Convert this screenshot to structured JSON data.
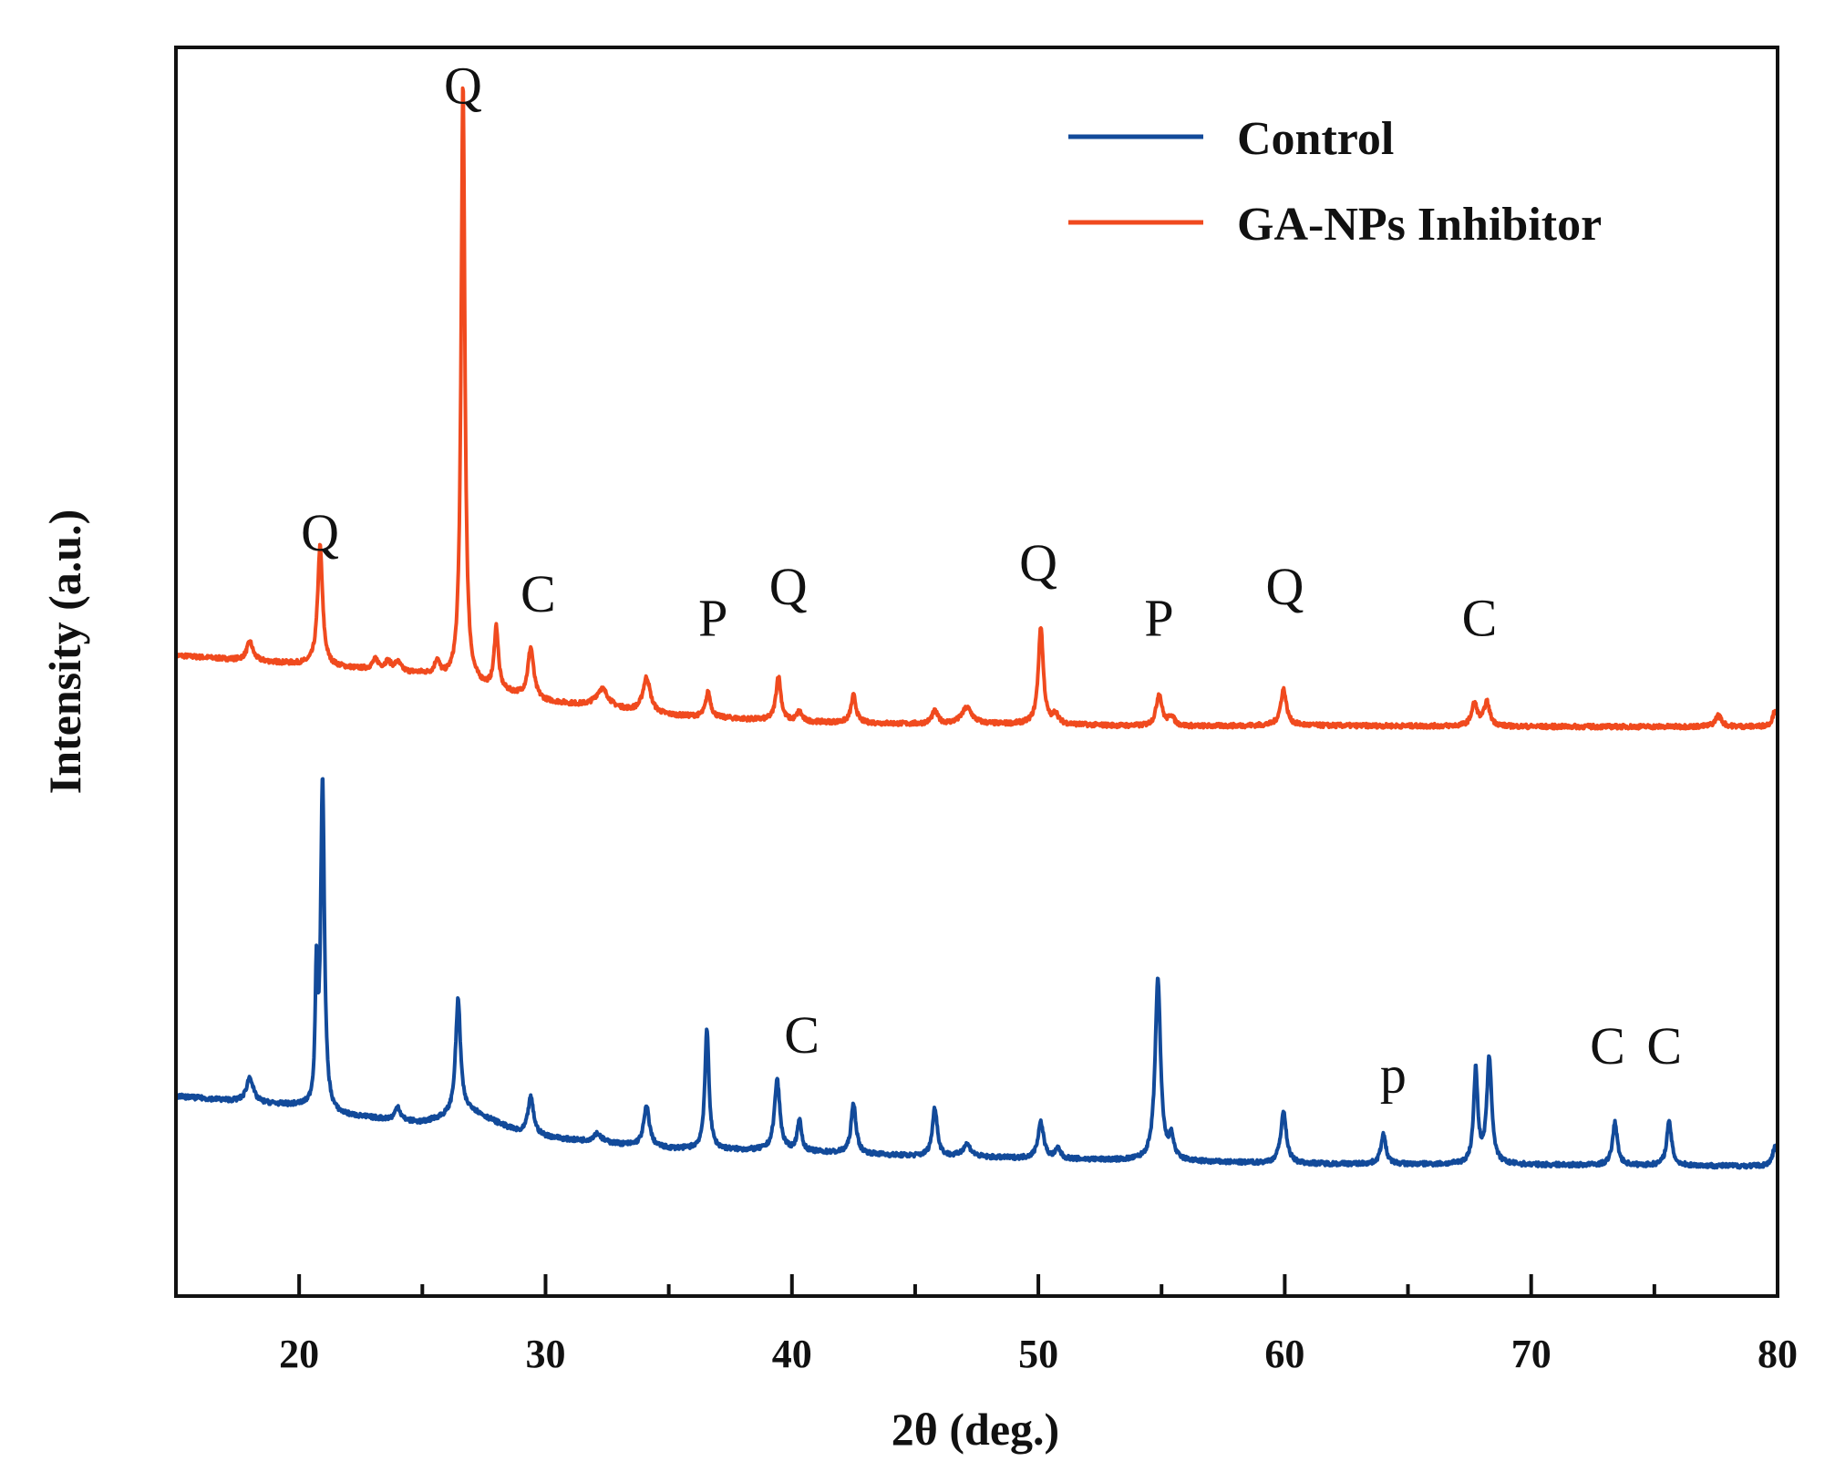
{
  "chart_data": {
    "type": "line",
    "title": "",
    "xlabel": "2θ (deg.)",
    "ylabel": "Intensity (a.u.)",
    "xlim": [
      15,
      80
    ],
    "ylim": [
      0,
      100
    ],
    "x_ticks": [
      20,
      30,
      40,
      50,
      60,
      70,
      80
    ],
    "legend": {
      "position": "top-right",
      "entries": [
        "Control",
        "GA-NPs Inhibitor"
      ]
    },
    "series": [
      {
        "name": "GA-NPs Inhibitor",
        "color": "#f04a1e",
        "baseline": [
          [
            15,
            51.3
          ],
          [
            20,
            50.6
          ],
          [
            25,
            49.8
          ],
          [
            30,
            47.6
          ],
          [
            35,
            46.5
          ],
          [
            40,
            46.0
          ],
          [
            45,
            45.8
          ],
          [
            50,
            45.8
          ],
          [
            55,
            45.6
          ],
          [
            60,
            45.7
          ],
          [
            70,
            45.6
          ],
          [
            80,
            45.6
          ]
        ],
        "peaks": [
          {
            "x": 18.0,
            "h": 1.5,
            "w": 0.15
          },
          {
            "x": 20.85,
            "h": 9.6,
            "w": 0.12
          },
          {
            "x": 23.1,
            "h": 0.8,
            "w": 0.15
          },
          {
            "x": 23.6,
            "h": 0.7,
            "w": 0.15
          },
          {
            "x": 24.0,
            "h": 0.7,
            "w": 0.15
          },
          {
            "x": 25.6,
            "h": 1.2,
            "w": 0.12
          },
          {
            "x": 26.65,
            "h": 48.0,
            "w": 0.09
          },
          {
            "x": 28.0,
            "h": 5.0,
            "w": 0.1
          },
          {
            "x": 29.4,
            "h": 4.0,
            "w": 0.14
          },
          {
            "x": 32.3,
            "h": 1.5,
            "w": 0.3
          },
          {
            "x": 34.1,
            "h": 2.8,
            "w": 0.18
          },
          {
            "x": 36.6,
            "h": 2.0,
            "w": 0.12
          },
          {
            "x": 39.45,
            "h": 3.6,
            "w": 0.12
          },
          {
            "x": 40.3,
            "h": 0.8,
            "w": 0.12
          },
          {
            "x": 42.5,
            "h": 2.2,
            "w": 0.12
          },
          {
            "x": 45.8,
            "h": 1.0,
            "w": 0.15
          },
          {
            "x": 47.1,
            "h": 1.3,
            "w": 0.25
          },
          {
            "x": 50.1,
            "h": 7.8,
            "w": 0.12
          },
          {
            "x": 50.7,
            "h": 0.8,
            "w": 0.12
          },
          {
            "x": 54.9,
            "h": 2.6,
            "w": 0.14
          },
          {
            "x": 55.4,
            "h": 0.8,
            "w": 0.14
          },
          {
            "x": 59.95,
            "h": 2.9,
            "w": 0.14
          },
          {
            "x": 67.7,
            "h": 1.8,
            "w": 0.14
          },
          {
            "x": 68.2,
            "h": 1.9,
            "w": 0.14
          },
          {
            "x": 77.6,
            "h": 0.9,
            "w": 0.15
          },
          {
            "x": 79.9,
            "h": 1.3,
            "w": 0.12
          }
        ]
      },
      {
        "name": "Control",
        "color": "#124a9a",
        "baseline": [
          [
            15,
            16.0
          ],
          [
            20,
            15.2
          ],
          [
            21.5,
            14.5
          ],
          [
            25,
            13.9
          ],
          [
            27,
            14.8
          ],
          [
            29,
            13.0
          ],
          [
            31,
            12.5
          ],
          [
            35,
            11.8
          ],
          [
            40,
            11.6
          ],
          [
            45,
            11.2
          ],
          [
            50,
            11.0
          ],
          [
            60,
            10.6
          ],
          [
            70,
            10.5
          ],
          [
            80,
            10.4
          ]
        ],
        "peaks": [
          {
            "x": 18.0,
            "h": 2.0,
            "w": 0.16
          },
          {
            "x": 20.7,
            "h": 10.0,
            "w": 0.06
          },
          {
            "x": 20.95,
            "h": 26.5,
            "w": 0.09
          },
          {
            "x": 24.0,
            "h": 1.1,
            "w": 0.12
          },
          {
            "x": 26.45,
            "h": 9.2,
            "w": 0.12
          },
          {
            "x": 29.4,
            "h": 3.0,
            "w": 0.14
          },
          {
            "x": 32.1,
            "h": 0.7,
            "w": 0.2
          },
          {
            "x": 34.1,
            "h": 3.2,
            "w": 0.14
          },
          {
            "x": 36.55,
            "h": 9.6,
            "w": 0.1
          },
          {
            "x": 39.4,
            "h": 5.7,
            "w": 0.13
          },
          {
            "x": 40.3,
            "h": 2.5,
            "w": 0.1
          },
          {
            "x": 42.5,
            "h": 4.0,
            "w": 0.12
          },
          {
            "x": 45.8,
            "h": 3.9,
            "w": 0.12
          },
          {
            "x": 47.1,
            "h": 1.0,
            "w": 0.2
          },
          {
            "x": 50.1,
            "h": 2.9,
            "w": 0.14
          },
          {
            "x": 50.8,
            "h": 0.8,
            "w": 0.12
          },
          {
            "x": 54.85,
            "h": 14.6,
            "w": 0.13
          },
          {
            "x": 55.4,
            "h": 1.7,
            "w": 0.12
          },
          {
            "x": 59.95,
            "h": 4.1,
            "w": 0.14
          },
          {
            "x": 64.0,
            "h": 2.4,
            "w": 0.12
          },
          {
            "x": 67.75,
            "h": 7.5,
            "w": 0.1
          },
          {
            "x": 68.3,
            "h": 8.5,
            "w": 0.12
          },
          {
            "x": 73.4,
            "h": 3.4,
            "w": 0.12
          },
          {
            "x": 75.6,
            "h": 3.5,
            "w": 0.12
          },
          {
            "x": 79.9,
            "h": 1.6,
            "w": 0.12
          }
        ]
      }
    ],
    "annotations": [
      {
        "text": "Q",
        "x": 26.65,
        "y": 95.5
      },
      {
        "text": "Q",
        "x": 20.85,
        "y": 59.7
      },
      {
        "text": "C",
        "x": 29.7,
        "y": 54.8
      },
      {
        "text": "P",
        "x": 36.8,
        "y": 52.9
      },
      {
        "text": "Q",
        "x": 39.85,
        "y": 55.4
      },
      {
        "text": "Q",
        "x": 50.0,
        "y": 57.3
      },
      {
        "text": "P",
        "x": 54.9,
        "y": 52.9
      },
      {
        "text": "Q",
        "x": 60.0,
        "y": 55.4
      },
      {
        "text": "C",
        "x": 67.9,
        "y": 52.9
      },
      {
        "text": "C",
        "x": 40.4,
        "y": 19.5
      },
      {
        "text": "p",
        "x": 64.4,
        "y": 16.3
      },
      {
        "text": "C",
        "x": 73.1,
        "y": 18.6
      },
      {
        "text": "C",
        "x": 75.4,
        "y": 18.6
      }
    ]
  }
}
